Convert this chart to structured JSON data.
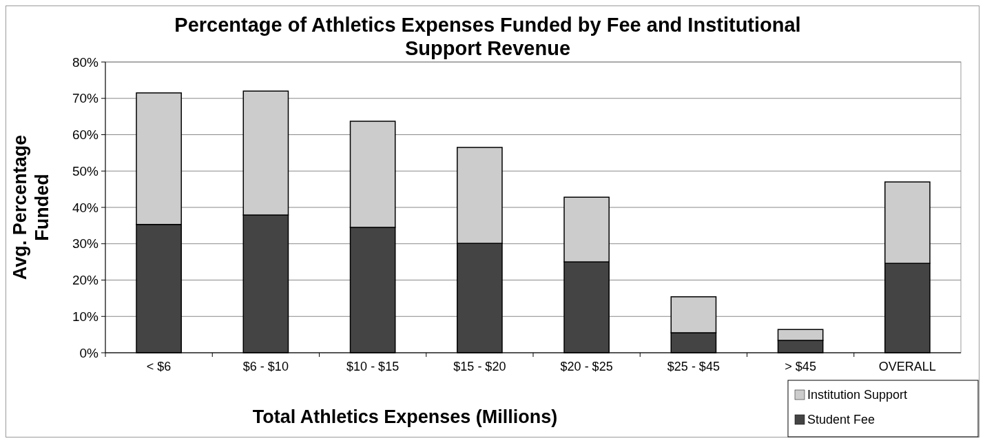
{
  "chart_data": {
    "type": "bar",
    "title": "Percentage of Athletics Expenses Funded by Fee and Institutional Support Revenue",
    "xlabel": "Total Athletics Expenses (Millions)",
    "ylabel": "Avg. Percentage Funded",
    "categories": [
      "< $6",
      "$6 - $10",
      "$10 - $15",
      "$15 - $20",
      "$20 - $25",
      "$25 - $45",
      "> $45",
      "OVERALL"
    ],
    "stacked": true,
    "series": [
      {
        "name": "Student Fee",
        "color": "#444444",
        "values": [
          35.3,
          37.9,
          34.5,
          30.1,
          25.0,
          5.5,
          3.4,
          24.6
        ]
      },
      {
        "name": "Institution Support",
        "color": "#cccccc",
        "values": [
          36.2,
          34.1,
          29.2,
          26.4,
          17.8,
          9.9,
          3.0,
          22.4
        ]
      }
    ],
    "ylim": [
      0,
      80
    ],
    "yticks": [
      {
        "value": 0,
        "label": "0%"
      },
      {
        "value": 10,
        "label": "10%"
      },
      {
        "value": 20,
        "label": "20%"
      },
      {
        "value": 30,
        "label": "30%"
      },
      {
        "value": 40,
        "label": "40%"
      },
      {
        "value": 50,
        "label": "50%"
      },
      {
        "value": 60,
        "label": "60%"
      },
      {
        "value": 70,
        "label": "70%"
      },
      {
        "value": 80,
        "label": "80%"
      }
    ],
    "grid": "y",
    "legend": "bottom right"
  }
}
